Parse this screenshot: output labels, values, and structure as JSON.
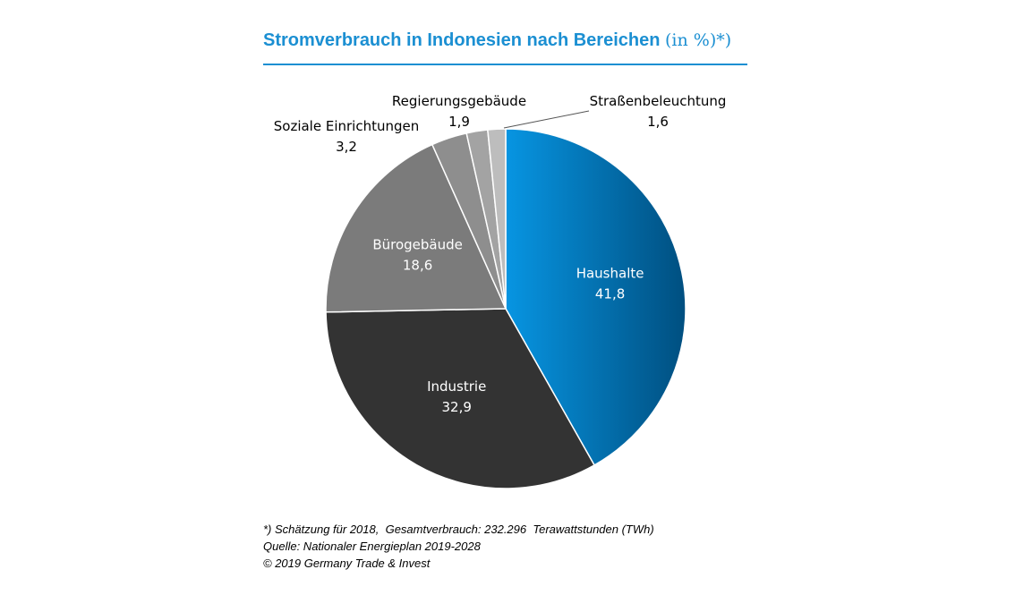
{
  "title": "Stromverbrauch in Indonesien nach Bereichen",
  "title_unit": "(in %)*)",
  "chart_data": {
    "type": "pie",
    "title": "Stromverbrauch in Indonesien nach Bereichen (in %)*)",
    "categories": [
      "Haushalte",
      "Industrie",
      "Bürogebäude",
      "Soziale Einrichtungen",
      "Regierungsgebäude",
      "Straßenbeleuchtung"
    ],
    "values": [
      41.8,
      32.9,
      18.6,
      3.2,
      1.9,
      1.6
    ],
    "value_labels": [
      "41,8",
      "32,9",
      "18,6",
      "3,2",
      "1,9",
      "1,6"
    ],
    "colors": [
      "#1b8fd2",
      "#333333",
      "#7b7b7b",
      "#8e8e8e",
      "#a3a3a3",
      "#bdbdbd"
    ],
    "start": "top",
    "direction": "clockwise"
  },
  "notes": [
    "*) Schätzung für 2018,  Gesamtverbrauch: 232.296  Terawattstunden (TWh)",
    "Quelle: Nationaler Energieplan 2019-2028",
    "© 2019 Germany Trade & Invest"
  ]
}
